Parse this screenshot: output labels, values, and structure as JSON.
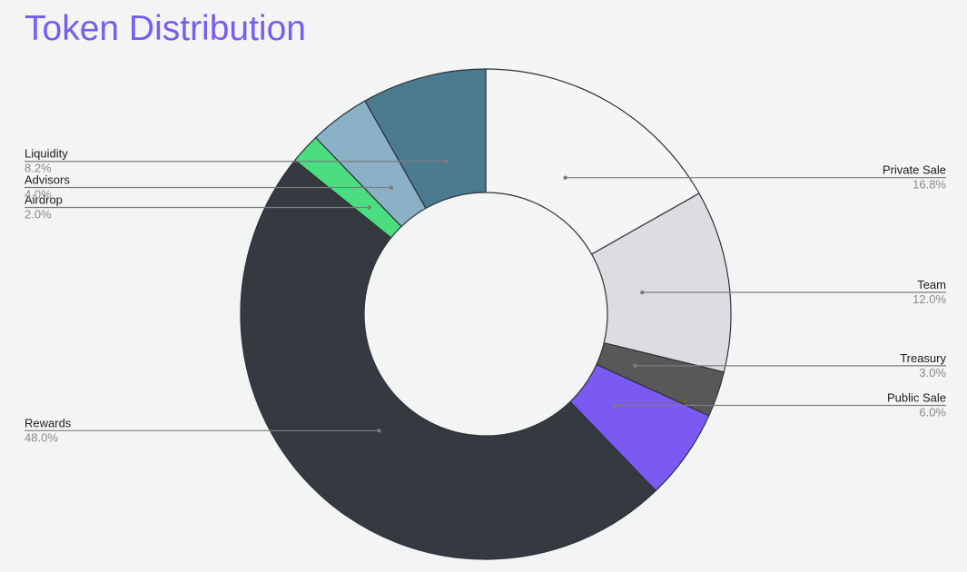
{
  "colors": {
    "title": "#7b5cf0",
    "background": "#f2f5f3",
    "label_text": "#1c1c1c",
    "percent_text": "#8a8a8a",
    "leader_line": "#7d7d7d",
    "slice_stroke": "#2e333c"
  },
  "chart_data": {
    "type": "pie",
    "variant": "donut",
    "title": "Token Distribution",
    "unit": "%",
    "legend": "none",
    "slices": [
      {
        "label": "Private Sale",
        "value": 16.8,
        "display": "16.8%",
        "color": "#f4f6f4"
      },
      {
        "label": "Team",
        "value": 12.0,
        "display": "12.0%",
        "color": "#dcdde0"
      },
      {
        "label": "Treasury",
        "value": 3.0,
        "display": "3.0%",
        "color": "#585858"
      },
      {
        "label": "Public Sale",
        "value": 6.0,
        "display": "6.0%",
        "color": "#7a5af3"
      },
      {
        "label": "Rewards",
        "value": 48.0,
        "display": "48.0%",
        "color": "#353940"
      },
      {
        "label": "Airdrop",
        "value": 2.0,
        "display": "2.0%",
        "color": "#4ade80"
      },
      {
        "label": "Advisors",
        "value": 4.0,
        "display": "4.0%",
        "color": "#8ab1c6"
      },
      {
        "label": "Liquidity",
        "value": 8.2,
        "display": "8.2%",
        "color": "#4c7a8f"
      }
    ]
  }
}
